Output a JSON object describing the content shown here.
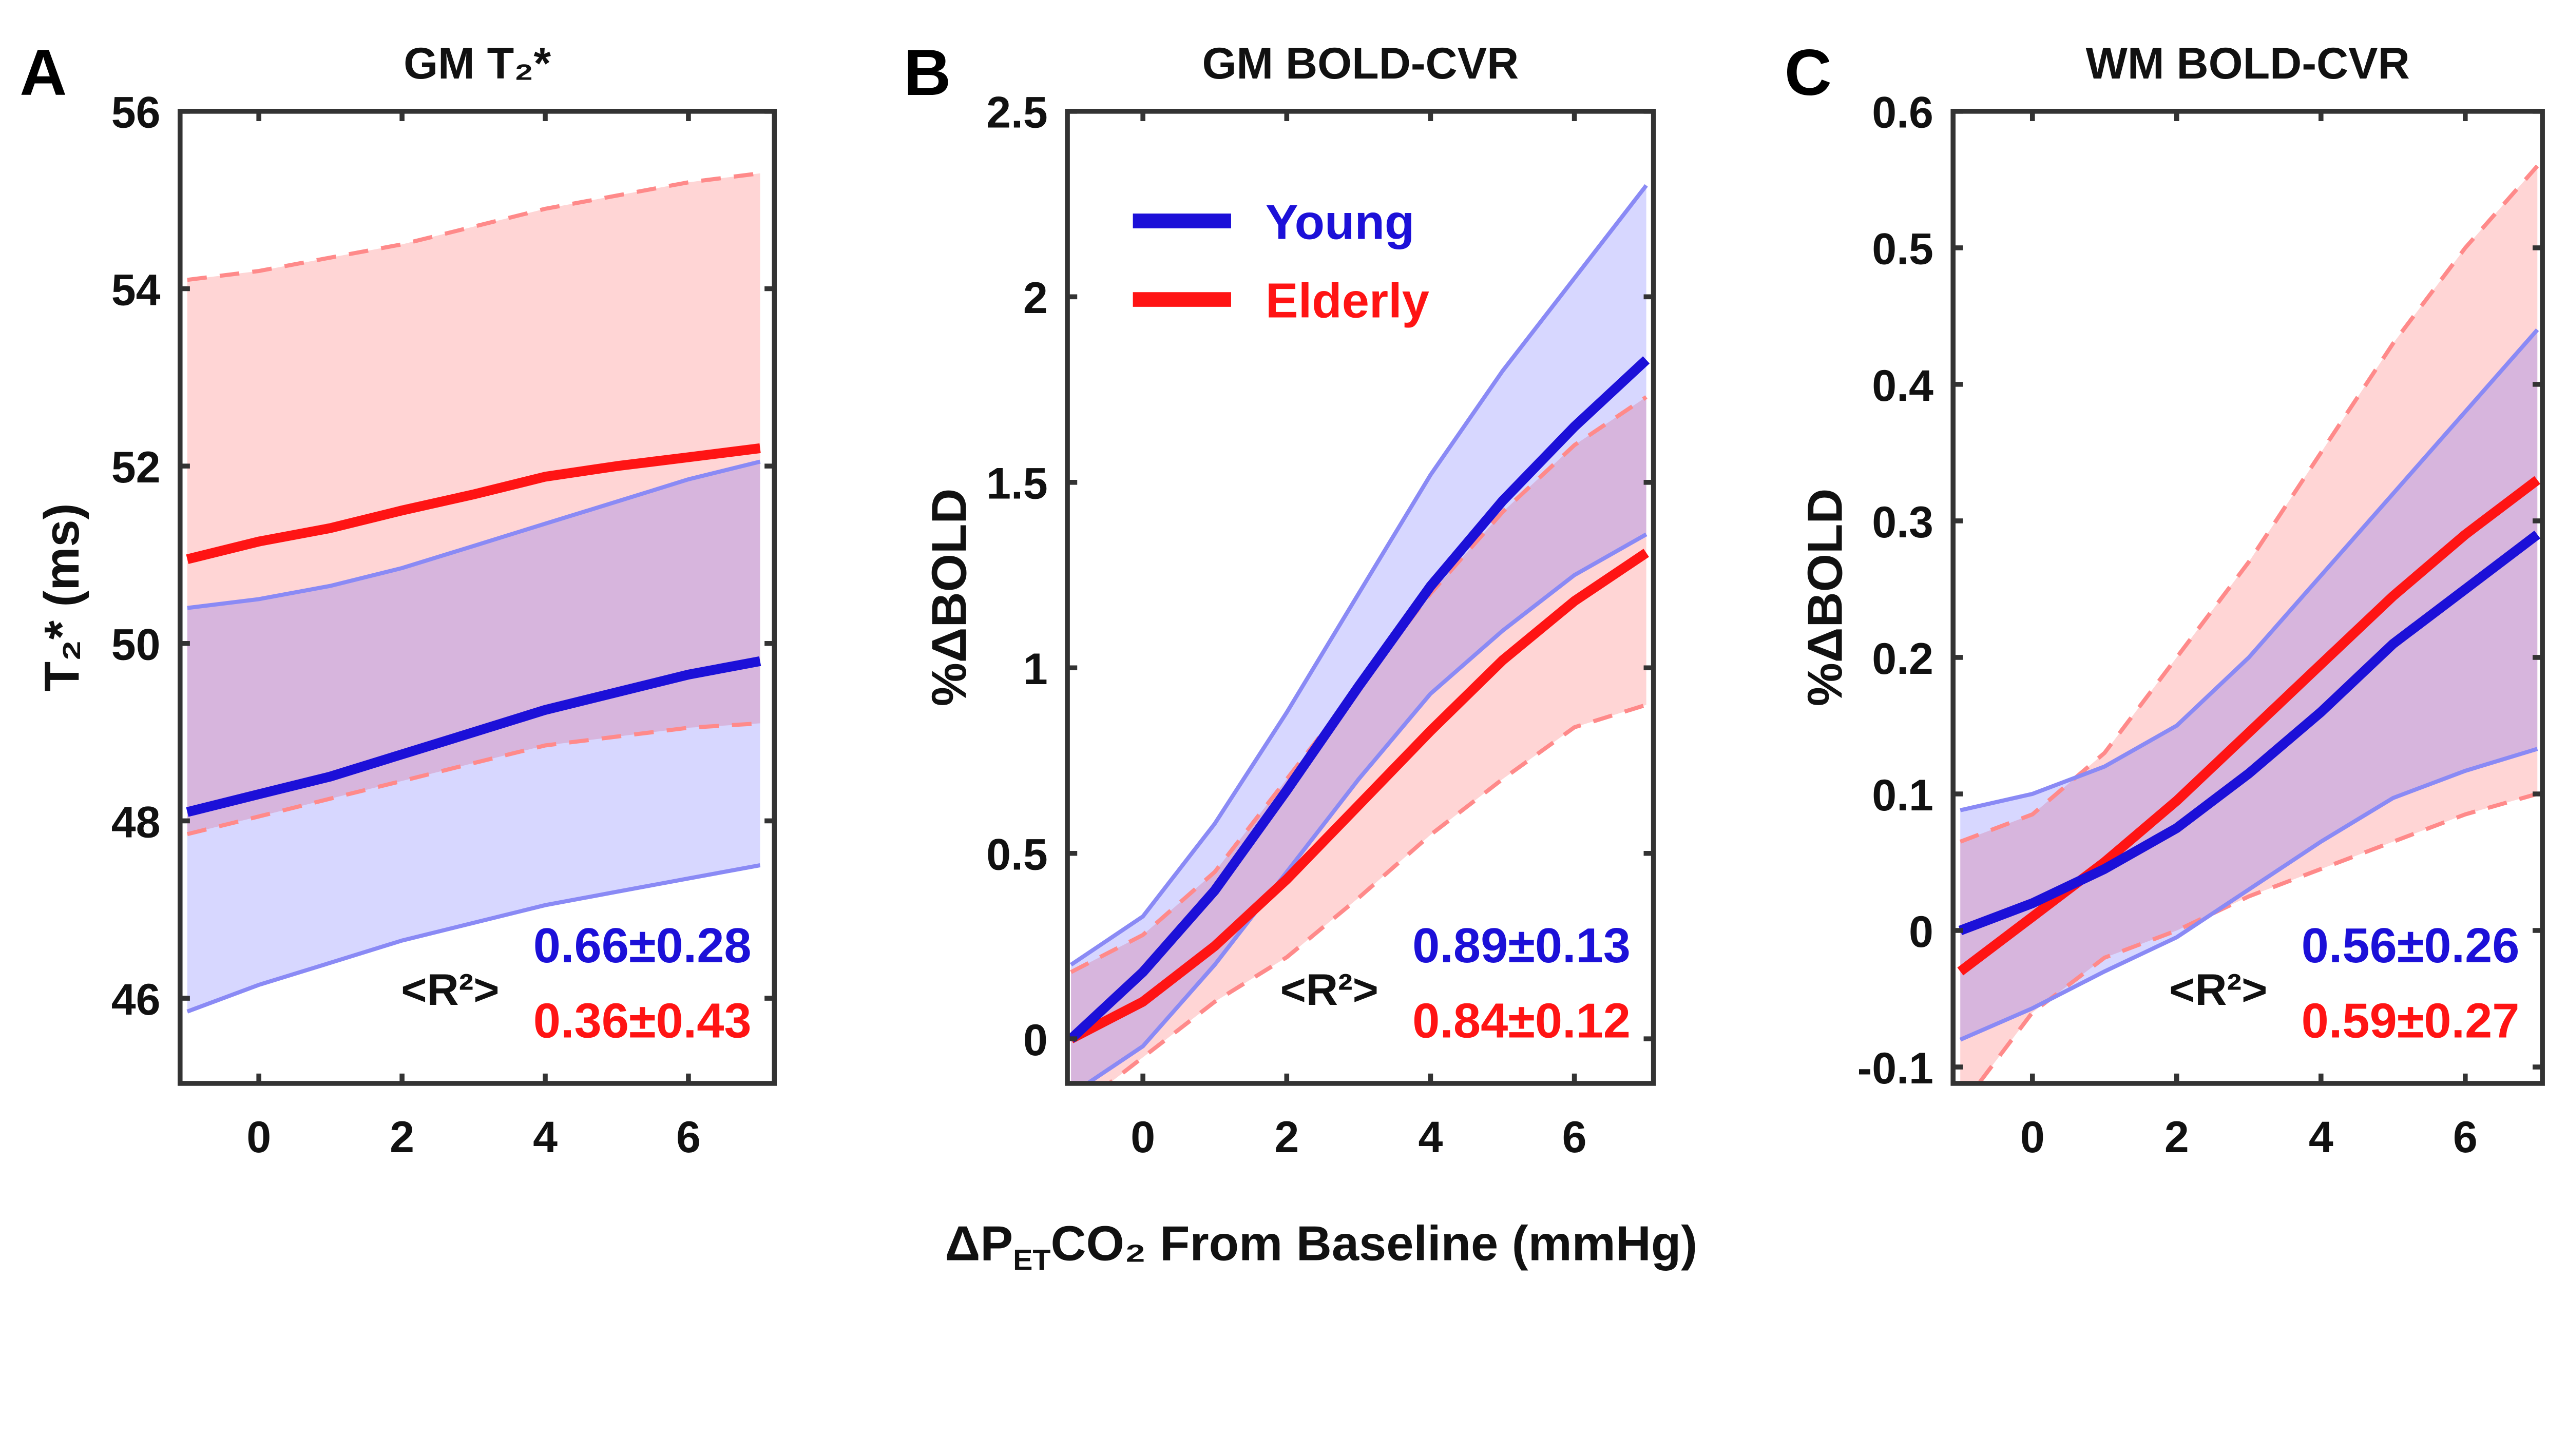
{
  "chart_data": [
    {
      "type": "line",
      "panel": "A",
      "title": "GM T₂*",
      "ylabel": "T₂* (ms)",
      "xlim": [
        -1.1,
        7.2
      ],
      "ylim": [
        45.04,
        56
      ],
      "xticks": [
        0,
        2,
        4,
        6
      ],
      "yticks": [
        46,
        48,
        50,
        52,
        54,
        56
      ],
      "x": [
        -1,
        0,
        1,
        2,
        3,
        4,
        5,
        6,
        7
      ],
      "series": [
        {
          "name": "Elderly",
          "color": "#ff1414",
          "mean": [
            50.95,
            51.15,
            51.3,
            51.5,
            51.68,
            51.88,
            52.0,
            52.1,
            52.2
          ],
          "upper": [
            54.1,
            54.2,
            54.35,
            54.5,
            54.7,
            54.9,
            55.05,
            55.2,
            55.3
          ],
          "lower": [
            47.85,
            48.05,
            48.25,
            48.45,
            48.65,
            48.85,
            48.95,
            49.05,
            49.1
          ]
        },
        {
          "name": "Young",
          "color": "#1c10d8",
          "mean": [
            48.1,
            48.3,
            48.5,
            48.75,
            49.0,
            49.25,
            49.45,
            49.65,
            49.8
          ],
          "upper": [
            50.4,
            50.5,
            50.65,
            50.85,
            51.1,
            51.35,
            51.6,
            51.85,
            52.05
          ],
          "lower": [
            45.85,
            46.15,
            46.4,
            46.65,
            46.85,
            47.05,
            47.2,
            47.35,
            47.5
          ]
        }
      ],
      "r2_label": "<R²>",
      "r2": {
        "young": "0.66±0.28",
        "elderly": "0.36±0.43"
      }
    },
    {
      "type": "line",
      "panel": "B",
      "title": "GM BOLD-CVR",
      "ylabel": "%ΔBOLD",
      "xlim": [
        -1.05,
        7.1
      ],
      "ylim": [
        -0.12,
        2.5
      ],
      "xticks": [
        0,
        2,
        4,
        6
      ],
      "yticks": [
        0,
        0.5,
        1,
        1.5,
        2,
        2.5
      ],
      "x": [
        -1,
        0,
        1,
        2,
        3,
        4,
        5,
        6,
        7
      ],
      "series": [
        {
          "name": "Elderly",
          "color": "#ff1414",
          "mean": [
            0,
            0.1,
            0.25,
            0.43,
            0.63,
            0.83,
            1.02,
            1.18,
            1.31
          ],
          "upper": [
            0.18,
            0.28,
            0.45,
            0.7,
            0.95,
            1.2,
            1.42,
            1.6,
            1.73
          ],
          "lower": [
            -0.2,
            -0.05,
            0.1,
            0.22,
            0.38,
            0.55,
            0.7,
            0.84,
            0.9
          ]
        },
        {
          "name": "Young",
          "color": "#1c10d8",
          "mean": [
            0,
            0.18,
            0.4,
            0.67,
            0.95,
            1.22,
            1.45,
            1.65,
            1.83
          ],
          "upper": [
            0.2,
            0.33,
            0.58,
            0.88,
            1.2,
            1.52,
            1.8,
            2.05,
            2.3
          ],
          "lower": [
            -0.15,
            -0.02,
            0.2,
            0.45,
            0.7,
            0.93,
            1.1,
            1.25,
            1.36
          ]
        }
      ],
      "legend": [
        "Young",
        "Elderly"
      ],
      "legend_position": "top-left",
      "r2_label": "<R²>",
      "r2": {
        "young": "0.89±0.13",
        "elderly": "0.84±0.12"
      }
    },
    {
      "type": "line",
      "panel": "C",
      "title": "WM BOLD-CVR",
      "ylabel": "%ΔBOLD",
      "xlim": [
        -1.1,
        7.07
      ],
      "ylim": [
        -0.112,
        0.6
      ],
      "xticks": [
        0,
        2,
        4,
        6
      ],
      "yticks": [
        -0.1,
        0,
        0.1,
        0.2,
        0.3,
        0.4,
        0.5,
        0.6
      ],
      "x": [
        -1,
        0,
        1,
        2,
        3,
        4,
        5,
        6,
        7
      ],
      "series": [
        {
          "name": "Elderly",
          "color": "#ff1414",
          "mean": [
            -0.03,
            0.01,
            0.05,
            0.095,
            0.145,
            0.195,
            0.245,
            0.29,
            0.33
          ],
          "upper": [
            0.065,
            0.085,
            0.13,
            0.2,
            0.27,
            0.35,
            0.43,
            0.5,
            0.56
          ],
          "lower": [
            -0.13,
            -0.06,
            -0.02,
            0.0,
            0.025,
            0.045,
            0.065,
            0.085,
            0.1
          ]
        },
        {
          "name": "Young",
          "color": "#1c10d8",
          "mean": [
            0,
            0.02,
            0.045,
            0.075,
            0.115,
            0.16,
            0.21,
            0.25,
            0.29
          ],
          "upper": [
            0.088,
            0.1,
            0.12,
            0.15,
            0.2,
            0.26,
            0.32,
            0.38,
            0.44
          ],
          "lower": [
            -0.08,
            -0.057,
            -0.03,
            -0.005,
            0.03,
            0.065,
            0.097,
            0.117,
            0.133
          ]
        }
      ],
      "r2_label": "<R²>",
      "r2": {
        "young": "0.56±0.26",
        "elderly": "0.59±0.27"
      }
    }
  ],
  "xlabel": {
    "pre": "ΔP",
    "sub": "ET",
    "post": "CO₂ From Baseline (mmHg)"
  }
}
